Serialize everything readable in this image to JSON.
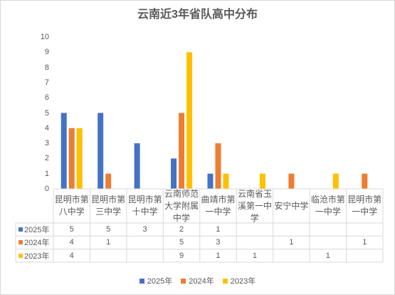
{
  "chart_data": {
    "type": "bar",
    "title": "云南近3年省队高中分布",
    "categories": [
      "昆明市第八中学",
      "昆明市第三中学",
      "昆明市第十中学",
      "云南师范大学附属中学",
      "曲靖市第一中学",
      "云南省玉溪第一中学",
      "安宁中学",
      "临沧市第一中学",
      "昆明市第一中学"
    ],
    "series": [
      {
        "name": "2025年",
        "color": "#4472C4",
        "values": [
          5,
          5,
          3,
          2,
          1,
          null,
          null,
          null,
          null
        ]
      },
      {
        "name": "2024年",
        "color": "#ED7D31",
        "values": [
          4,
          1,
          null,
          5,
          3,
          null,
          1,
          null,
          1
        ]
      },
      {
        "name": "2023年",
        "color": "#FFC000",
        "values": [
          4,
          null,
          null,
          9,
          1,
          1,
          null,
          1,
          null
        ]
      }
    ],
    "xlabel": "",
    "ylabel": "",
    "ylim": [
      0,
      10
    ],
    "yticks": [
      0,
      1,
      2,
      3,
      4,
      5,
      6,
      7,
      8,
      9,
      10
    ],
    "grid": false,
    "legend": "bottom",
    "data_table": true
  }
}
